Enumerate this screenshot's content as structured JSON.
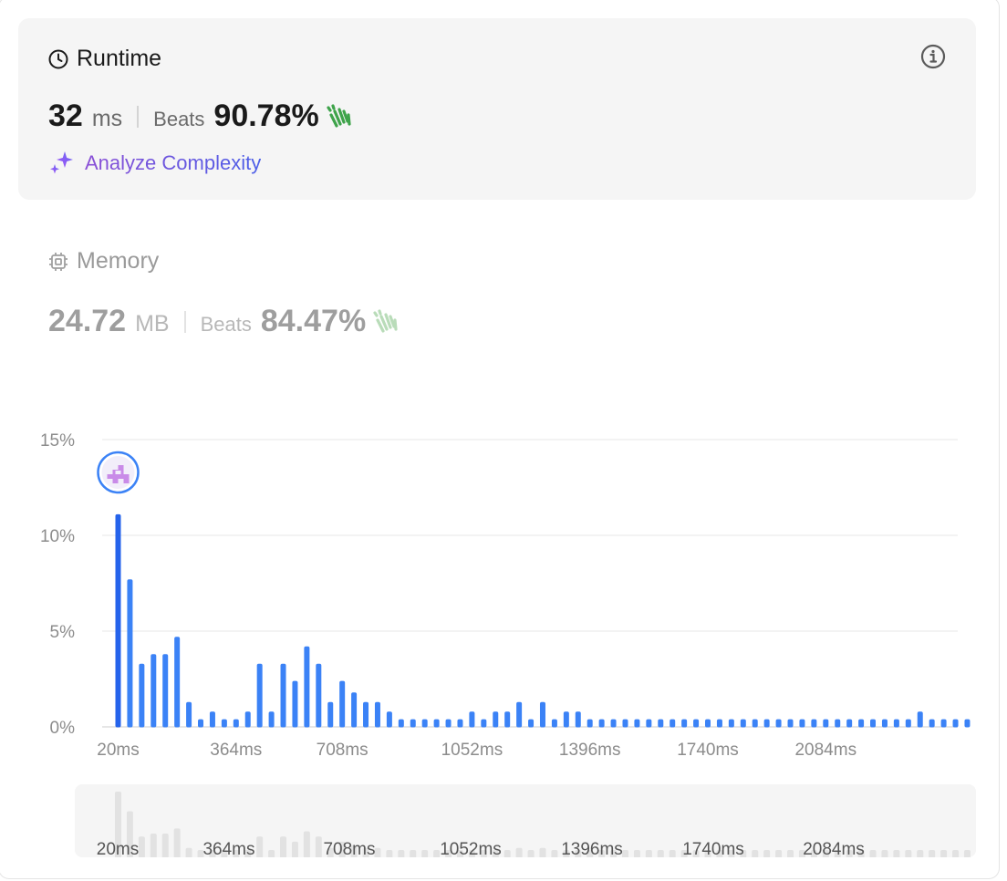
{
  "runtime": {
    "title": "Runtime",
    "value": "32",
    "unit": "ms",
    "beats_label": "Beats",
    "beats_value": "90.78%",
    "analyze_label": "Analyze Complexity"
  },
  "memory": {
    "title": "Memory",
    "value": "24.72",
    "unit": "MB",
    "beats_label": "Beats",
    "beats_value": "84.47%"
  },
  "icons": {
    "runtime": "clock-icon",
    "info": "info-icon",
    "clap": "clapping-hands-icon",
    "analyze": "sparkle-icon",
    "memory": "chip-icon"
  },
  "colors": {
    "bar": "#3b82f6",
    "bar_highlight": "#2563eb",
    "overview_bar": "#e2e2e2",
    "clap_active": "#3ea34a",
    "clap_muted": "#b9dcb9"
  },
  "chart_data": {
    "type": "bar",
    "ylim": [
      0,
      15
    ],
    "y_ticks": [
      "15%",
      "10%",
      "5%",
      "0%"
    ],
    "y_tick_values": [
      15,
      10,
      5,
      0
    ],
    "x_tick_labels": [
      "20ms",
      "364ms",
      "708ms",
      "1052ms",
      "1396ms",
      "1740ms",
      "2084ms"
    ],
    "x_tick_bar_index": [
      0,
      10,
      19,
      30,
      40,
      50,
      60
    ],
    "highlight_index": 0,
    "values": [
      11.1,
      7.7,
      3.3,
      3.8,
      3.8,
      4.7,
      1.3,
      0.4,
      0.8,
      0.4,
      0.4,
      0.8,
      3.3,
      0.8,
      3.3,
      2.4,
      4.2,
      3.3,
      1.3,
      2.4,
      1.8,
      1.3,
      1.3,
      0.8,
      0.4,
      0.4,
      0.4,
      0.4,
      0.4,
      0.4,
      0.8,
      0.4,
      0.8,
      0.8,
      1.3,
      0.4,
      1.3,
      0.4,
      0.8,
      0.8,
      0.4,
      0.4,
      0.4,
      0.4,
      0.4,
      0.4,
      0.4,
      0.4,
      0.4,
      0.4,
      0.4,
      0.4,
      0.4,
      0.4,
      0.4,
      0.4,
      0.4,
      0.4,
      0.4,
      0.4,
      0.4,
      0.4,
      0.4,
      0.4,
      0.4,
      0.4,
      0.4,
      0.4,
      0.8,
      0.4,
      0.4,
      0.4,
      0.4
    ]
  }
}
